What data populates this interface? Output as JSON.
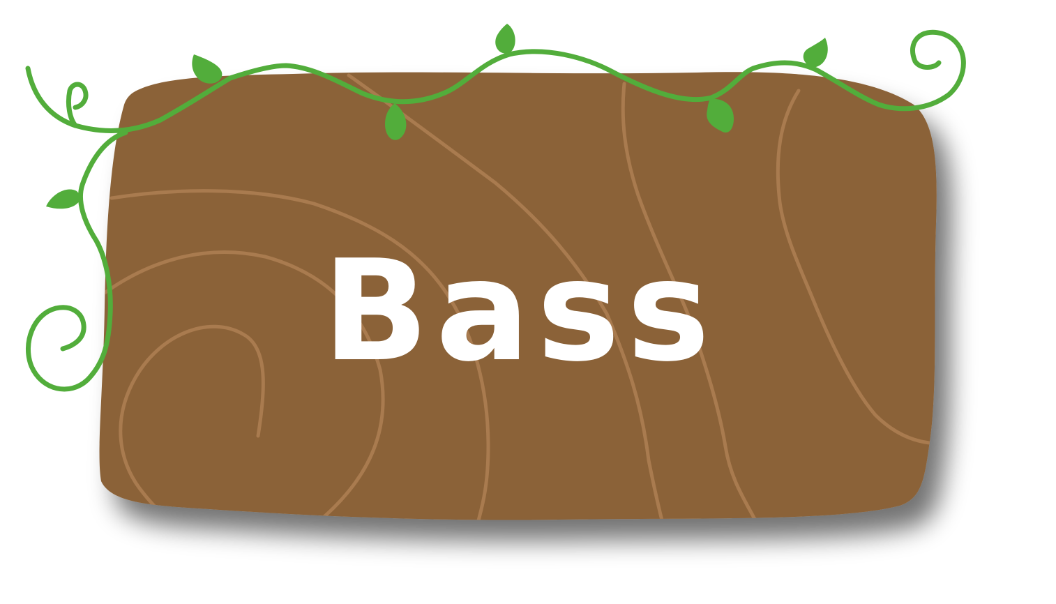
{
  "sign": {
    "label": "Bass"
  },
  "colors": {
    "wood": "#8b6239",
    "grain": "#a97b4f",
    "vine": "#52ad3b",
    "leaf": "#52ad3b",
    "text": "#ffffff",
    "shadow": "#9a9a9a"
  },
  "icons": [
    "wooden-sign-board",
    "vine-decoration",
    "leaf-icon"
  ]
}
